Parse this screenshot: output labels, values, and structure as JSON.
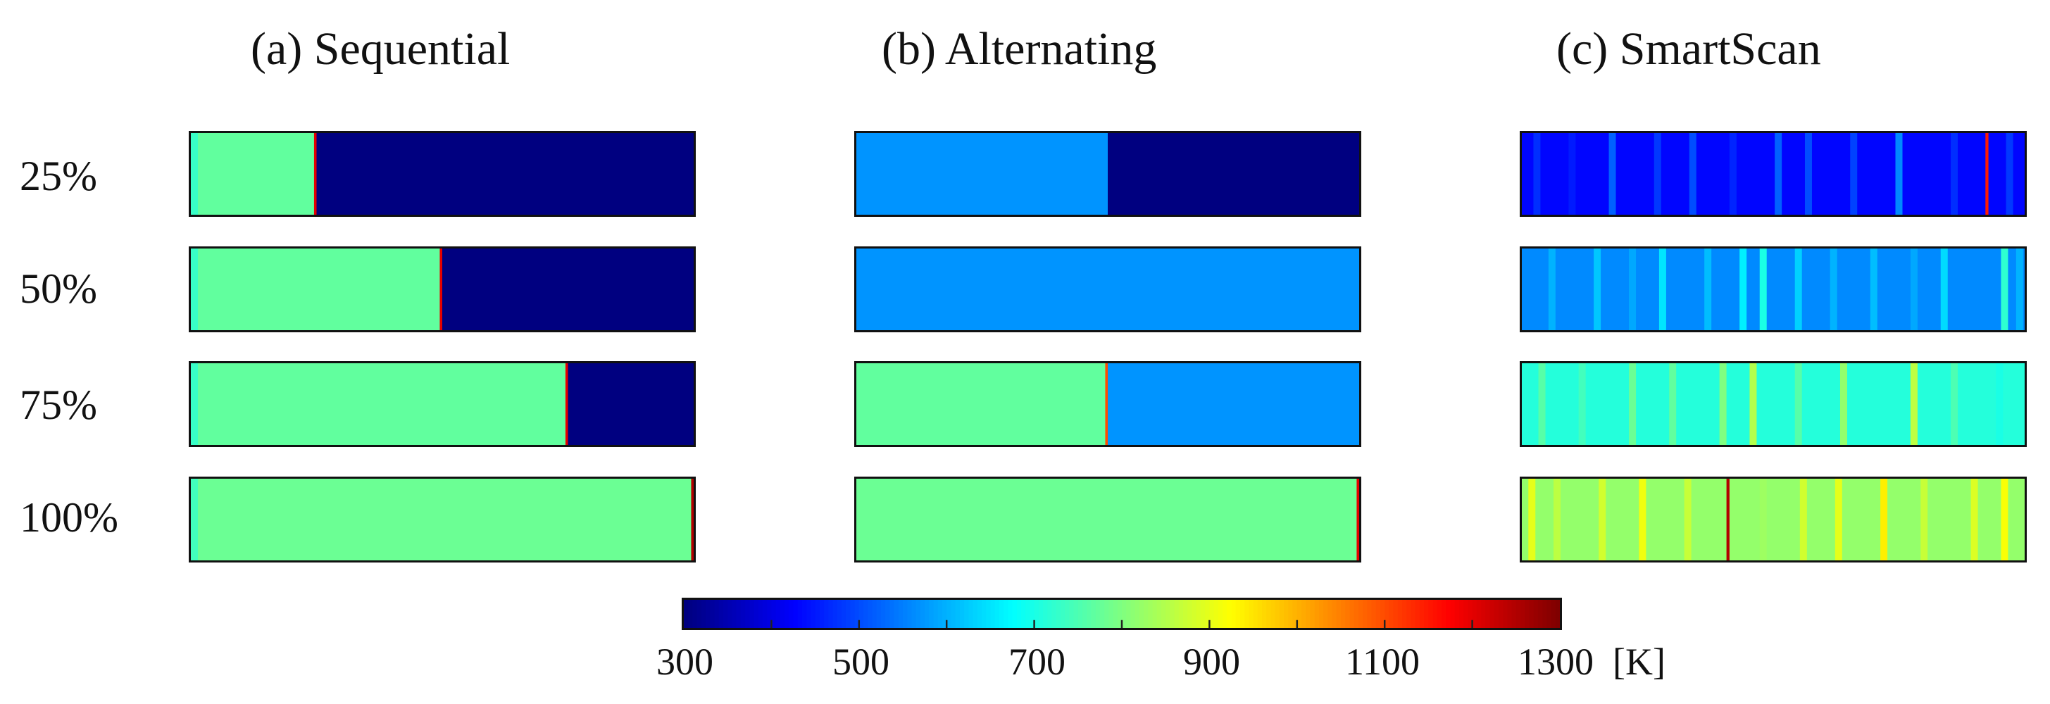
{
  "columns": [
    {
      "title": "(a) Sequential"
    },
    {
      "title": "(b) Alternating"
    },
    {
      "title": "(c) SmartScan"
    }
  ],
  "rows": [
    {
      "label": "25%"
    },
    {
      "label": "50%"
    },
    {
      "label": "75%"
    },
    {
      "label": "100%"
    }
  ],
  "strategies": {
    "sequential": [
      {
        "progress": "25%",
        "fill_fraction": 0.25,
        "scanned_temp_K": 770,
        "unscanned_temp_K": 300,
        "hot_spot_temp_K": 1200
      },
      {
        "progress": "50%",
        "fill_fraction": 0.5,
        "scanned_temp_K": 770,
        "unscanned_temp_K": 300,
        "hot_spot_temp_K": 1200
      },
      {
        "progress": "75%",
        "fill_fraction": 0.75,
        "scanned_temp_K": 770,
        "unscanned_temp_K": 300,
        "hot_spot_temp_K": 1200
      },
      {
        "progress": "100%",
        "fill_fraction": 1.0,
        "scanned_temp_K": 780,
        "unscanned_temp_K": 300,
        "hot_spot_temp_K": 1250
      }
    ],
    "alternating": [
      {
        "progress": "25%",
        "left_fraction": 0.5,
        "left_temp_K": 570,
        "right_temp_K": 300
      },
      {
        "progress": "50%",
        "left_fraction": 1.0,
        "left_temp_K": 570,
        "right_temp_K": 570
      },
      {
        "progress": "75%",
        "left_fraction": 0.5,
        "left_temp_K": 770,
        "right_temp_K": 570,
        "hot_spot_temp_K": 1100
      },
      {
        "progress": "100%",
        "left_fraction": 1.0,
        "left_temp_K": 780,
        "right_temp_K": 780,
        "hot_spot_temp_K": 1200
      }
    ],
    "smartscan": [
      {
        "progress": "25%",
        "base_temp_K": 430,
        "stripe_temps_K": [
          470,
          450,
          520,
          480,
          500,
          460,
          520,
          500,
          490,
          560,
          470,
          1150,
          480
        ],
        "stripe_positions": [
          0.03,
          0.1,
          0.18,
          0.27,
          0.34,
          0.42,
          0.51,
          0.57,
          0.66,
          0.75,
          0.86,
          0.925,
          0.97
        ]
      },
      {
        "progress": "50%",
        "base_temp_K": 560,
        "stripe_temps_K": [
          600,
          620,
          590,
          650,
          610,
          660,
          700,
          630,
          600,
          610,
          590,
          640,
          720,
          600
        ],
        "stripe_positions": [
          0.06,
          0.15,
          0.22,
          0.28,
          0.37,
          0.44,
          0.48,
          0.55,
          0.62,
          0.7,
          0.78,
          0.84,
          0.96,
          0.99
        ]
      },
      {
        "progress": "75%",
        "base_temp_K": 710,
        "stripe_temps_K": [
          760,
          740,
          780,
          770,
          800,
          850,
          760,
          820,
          860,
          750,
          700
        ],
        "stripe_positions": [
          0.04,
          0.12,
          0.22,
          0.3,
          0.4,
          0.46,
          0.55,
          0.64,
          0.78,
          0.86,
          0.95
        ]
      },
      {
        "progress": "100%",
        "base_temp_K": 820,
        "stripe_temps_K": [
          900,
          860,
          880,
          910,
          870,
          1250,
          830,
          880,
          900,
          940,
          870,
          890,
          920
        ],
        "stripe_positions": [
          0.02,
          0.07,
          0.16,
          0.24,
          0.33,
          0.41,
          0.48,
          0.56,
          0.63,
          0.72,
          0.8,
          0.9,
          0.96
        ]
      }
    ]
  },
  "colorbar": {
    "min_K": 300,
    "max_K": 1300,
    "tick_labels": [
      "300",
      "500",
      "700",
      "900",
      "1100",
      "1300"
    ],
    "unit": "[K]",
    "colormap": "jet"
  }
}
